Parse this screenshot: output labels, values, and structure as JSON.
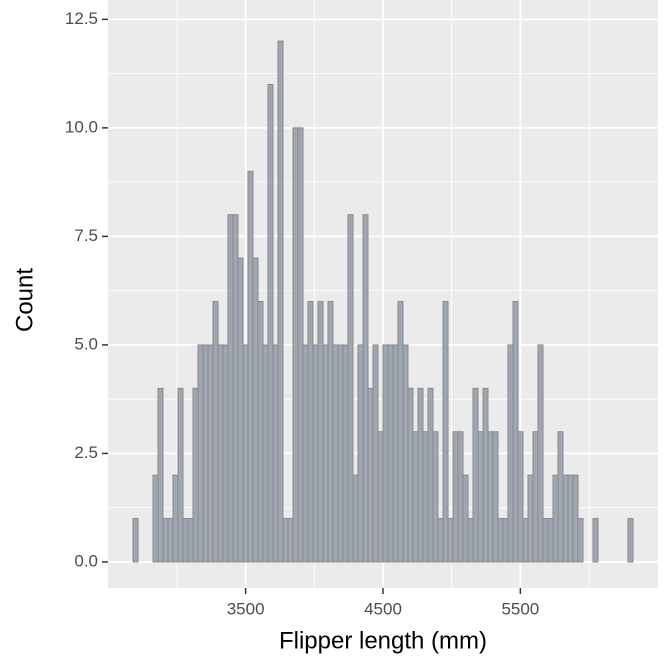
{
  "chart_data": {
    "type": "histogram",
    "x_label": "Flipper length (mm)",
    "y_label": "Count",
    "bins": [
      2680,
      2716.4,
      2752.8,
      2789.2,
      2825.6,
      2862,
      2898.4,
      2934.8,
      2971.2,
      3007.6,
      3044,
      3080.4,
      3116.8,
      3153.2,
      3189.6,
      3226,
      3262.4,
      3298.8,
      3335.2,
      3371.6,
      3408,
      3444.4,
      3480.8,
      3517.2,
      3553.6,
      3590,
      3626.4,
      3662.8,
      3699.2,
      3735.6,
      3772,
      3808.4,
      3844.8,
      3881.2,
      3917.6,
      3954,
      3990.4,
      4026.8,
      4063.2,
      4099.6,
      4136,
      4172.4,
      4208.8,
      4245.2,
      4281.6,
      4318,
      4354.4,
      4390.8,
      4427.2,
      4463.6,
      4500,
      4536.4,
      4572.8,
      4609.2,
      4645.6,
      4682,
      4718.4,
      4754.8,
      4791.2,
      4827.6,
      4864,
      4900.4,
      4936.8,
      4973.2,
      5009.6,
      5046,
      5082.4,
      5118.8,
      5155.2,
      5191.6,
      5228,
      5264.4,
      5300.8,
      5337.2,
      5373.6,
      5410,
      5446.4,
      5482.8,
      5519.2,
      5555.6,
      5592,
      5628.4,
      5664.8,
      5701.2,
      5737.6,
      5774,
      5810.4,
      5846.8,
      5883.2,
      5919.6,
      5956,
      5992.4,
      6028.8,
      6065.2,
      6101.6,
      6138,
      6174.4,
      6210.8,
      6247.2,
      6283.6,
      6320
    ],
    "values": [
      1,
      0,
      0,
      0,
      2,
      4,
      1,
      1,
      2,
      4,
      1,
      1,
      4,
      5,
      5,
      5,
      6,
      5,
      5,
      8,
      8,
      7,
      5,
      9,
      7,
      6,
      5,
      11,
      5,
      12,
      1,
      1,
      10,
      10,
      5,
      6,
      5,
      6,
      5,
      6,
      5,
      5,
      5,
      8,
      2,
      5,
      8,
      4,
      5,
      3,
      5,
      5,
      5,
      6,
      5,
      4,
      3,
      4,
      3,
      4,
      3,
      1,
      6,
      1,
      3,
      3,
      2,
      1,
      4,
      3,
      4,
      3,
      3,
      1,
      1,
      5,
      6,
      3,
      1,
      2,
      3,
      5,
      1,
      1,
      2,
      3,
      2,
      2,
      2,
      1,
      0,
      0,
      1,
      0,
      0,
      0,
      0,
      0,
      0,
      1
    ],
    "color": "#9ea7b2",
    "edge_color": "#8a8a8a",
    "xlim": [
      2498,
      6502
    ],
    "ylim": [
      -0.6,
      12.6
    ],
    "xticks": [
      3500,
      4500,
      5500
    ],
    "yticks": [
      {
        "value": 0,
        "label": "0.0"
      },
      2.5,
      {
        "value": 5,
        "label": "5.0"
      },
      7.5,
      {
        "value": 10,
        "label": "10.0"
      },
      12.5
    ],
    "x_minor_ticks": [
      3000,
      4000,
      5000,
      6000
    ],
    "y_minor_ticks": [
      1.25,
      3.75,
      6.25,
      8.75,
      11.25
    ],
    "grid": true,
    "panel_color": "#ebebeb"
  }
}
